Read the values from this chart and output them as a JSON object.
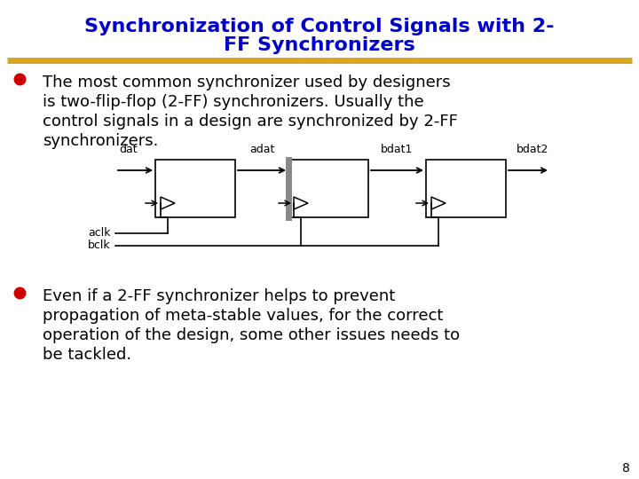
{
  "title_line1": "Synchronization of Control Signals with 2-",
  "title_line2": "FF Synchronizers",
  "title_color": "#0000CC",
  "separator_color": "#DAA520",
  "bullet_color": "#CC0000",
  "text_color": "#000000",
  "bullet1_lines": [
    "The most common synchronizer used by designers",
    "is two-flip-flop (2-FF) synchronizers. Usually the",
    "control signals in a design are synchronized by 2-FF",
    "synchronizers."
  ],
  "bullet2_lines": [
    "Even if a 2-FF synchronizer helps to prevent",
    "propagation of meta-stable values, for the correct",
    "operation of the design, some other issues needs to",
    "be tackled."
  ],
  "page_number": "8",
  "bg_color": "#FFFFFF"
}
